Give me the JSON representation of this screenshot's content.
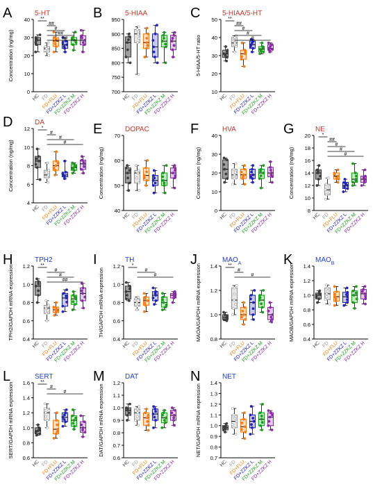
{
  "colors": {
    "HC": "#3d3d3d",
    "FD": "#9a9a9a",
    "FLU": "#f07d1a",
    "L": "#2222bb",
    "M": "#1e9a1e",
    "H": "#8a2aa8",
    "red": "#c0392b",
    "blue": "#1f3fbf"
  },
  "groups": [
    "HC",
    "FD",
    "FD+FLU",
    "FD+ZZKZ L",
    "FD+ZZKZ M",
    "FD+ZZKZ H"
  ],
  "chart_data": [
    {
      "type": "box",
      "letter": "A",
      "title": "5-HT",
      "title_color": "red",
      "ylabel": "Concentration (ng/mg)",
      "ylim": [
        0,
        40
      ],
      "ticks": [
        0,
        10,
        20,
        30,
        40
      ],
      "tick_labels": [
        "0",
        "10",
        "20",
        "30",
        "40"
      ],
      "boxes": [
        [
          22,
          26,
          28.5,
          30,
          31.5
        ],
        [
          20,
          22,
          23.8,
          25,
          27
        ],
        [
          22,
          25,
          28,
          30,
          33
        ],
        [
          22,
          24,
          26,
          28,
          30
        ],
        [
          23,
          26,
          28.5,
          30,
          33
        ],
        [
          22,
          26,
          28.5,
          31,
          34
        ]
      ],
      "sig": [
        {
          "a": 0,
          "b": 1,
          "text": "**",
          "level": 0
        },
        {
          "a": 1,
          "b": 2,
          "text": "##",
          "level": 1
        },
        {
          "a": 1,
          "b": 3,
          "text": "#",
          "level": 2
        },
        {
          "a": 1,
          "b": 4,
          "text": "##",
          "level": 3
        },
        {
          "a": 1,
          "b": 5,
          "text": "##",
          "level": 4
        }
      ]
    },
    {
      "type": "box",
      "letter": "B",
      "title": "5-HIAA",
      "title_color": "red",
      "ylabel": "",
      "ylim": [
        700,
        950
      ],
      "ticks": [
        700,
        750,
        800,
        850,
        900,
        950
      ],
      "tick_labels": [
        "700",
        "750",
        "800",
        "850",
        "900",
        "950"
      ],
      "boxes": [
        [
          800,
          820,
          870,
          890,
          900
        ],
        [
          760,
          870,
          900,
          915,
          925
        ],
        [
          820,
          850,
          870,
          900,
          920
        ],
        [
          800,
          820,
          855,
          900,
          930
        ],
        [
          800,
          855,
          875,
          895,
          905
        ],
        [
          820,
          845,
          875,
          895,
          905
        ]
      ],
      "sig": []
    },
    {
      "type": "box",
      "letter": "C",
      "title": "5-HIAA/5-HT",
      "title_color": "red",
      "ylabel": "5-HIAA/5-HT ratio",
      "ylim": [
        10,
        50
      ],
      "ticks": [
        10,
        20,
        30,
        40,
        50
      ],
      "tick_labels": [
        "10",
        "20",
        "30",
        "40",
        "50"
      ],
      "boxes": [
        [
          27,
          29,
          31,
          33,
          35
        ],
        [
          32,
          35,
          37,
          40,
          41
        ],
        [
          24,
          28,
          31,
          33,
          37
        ],
        [
          32,
          34,
          36,
          38,
          39
        ],
        [
          31,
          32,
          33.5,
          35,
          37
        ],
        [
          32,
          33,
          34,
          36,
          37
        ]
      ],
      "sig": [
        {
          "a": 0,
          "b": 1,
          "text": "**",
          "level": 0
        },
        {
          "a": 1,
          "b": 2,
          "text": "##",
          "level": 1
        },
        {
          "a": 1,
          "b": 3,
          "text": "#",
          "level": 2
        },
        {
          "a": 1,
          "b": 4,
          "text": "#",
          "level": 3
        },
        {
          "a": 1,
          "b": 5,
          "text": "#",
          "level": 4
        }
      ]
    },
    {
      "type": "box",
      "letter": "D",
      "title": "DA",
      "title_color": "red",
      "ylabel": "Concentration (ng/mg)",
      "ylim": [
        4,
        12
      ],
      "ticks": [
        4,
        6,
        8,
        10,
        12
      ],
      "tick_labels": [
        "4",
        "6",
        "8",
        "10",
        "12"
      ],
      "boxes": [
        [
          6.5,
          7.8,
          8.5,
          9.0,
          9.8
        ],
        [
          6.2,
          6.7,
          7.0,
          7.5,
          8.3
        ],
        [
          7.0,
          7.5,
          8.0,
          8.5,
          9.5
        ],
        [
          6.6,
          6.8,
          7.0,
          7.3,
          8.5
        ],
        [
          7.2,
          7.5,
          7.8,
          8.1,
          8.3
        ],
        [
          7.2,
          7.6,
          8.2,
          8.6,
          9.0
        ]
      ],
      "sig": [
        {
          "a": 0,
          "b": 1,
          "text": "*",
          "level": 0
        },
        {
          "a": 1,
          "b": 2,
          "text": "#",
          "level": 1
        },
        {
          "a": 1,
          "b": 4,
          "text": "#",
          "level": 2
        },
        {
          "a": 1,
          "b": 5,
          "text": "#",
          "level": 3
        }
      ]
    },
    {
      "type": "box",
      "letter": "E",
      "title": "DOPAC",
      "title_color": "red",
      "ylabel": "Concentration (ng/mg)",
      "ylim": [
        40,
        70
      ],
      "ticks": [
        40,
        50,
        60,
        70
      ],
      "tick_labels": [
        "40",
        "50",
        "60",
        "70"
      ],
      "boxes": [
        [
          48,
          51,
          55,
          57,
          58
        ],
        [
          48,
          51,
          55,
          56,
          58
        ],
        [
          50,
          52,
          54,
          57,
          60
        ],
        [
          47,
          50,
          52,
          54,
          56
        ],
        [
          47,
          50,
          52,
          55,
          58
        ],
        [
          49,
          53,
          55,
          57,
          58
        ]
      ],
      "sig": []
    },
    {
      "type": "box",
      "letter": "F",
      "title": "HVA",
      "title_color": "red",
      "ylabel": "Concentration (ng/mg)",
      "ylim": [
        0,
        40
      ],
      "ticks": [
        0,
        10,
        20,
        30,
        40
      ],
      "tick_labels": [
        "0",
        "10",
        "20",
        "30",
        "40"
      ],
      "boxes": [
        [
          15,
          17,
          22,
          27,
          28
        ],
        [
          14,
          17,
          19,
          22,
          25
        ],
        [
          14,
          17,
          19,
          22,
          24
        ],
        [
          15,
          17,
          19,
          22,
          24
        ],
        [
          12,
          17,
          20,
          22,
          24
        ],
        [
          15,
          18,
          20,
          23,
          26
        ]
      ],
      "sig": []
    },
    {
      "type": "box",
      "letter": "G",
      "title": "NE",
      "title_color": "red",
      "ylabel": "Concentration (ng/mg)",
      "ylim": [
        8,
        20
      ],
      "ticks": [
        8,
        10,
        12,
        14,
        16,
        18,
        20
      ],
      "tick_labels": [
        "8",
        "10",
        "12",
        "14",
        "16",
        "18",
        "20"
      ],
      "boxes": [
        [
          12,
          13,
          14,
          14.5,
          15.2
        ],
        [
          9.8,
          10.5,
          11.3,
          12.2,
          13.2
        ],
        [
          12.5,
          13,
          13.5,
          14,
          14.5
        ],
        [
          11,
          11.5,
          12,
          12.5,
          13
        ],
        [
          12,
          12.5,
          13,
          14,
          15.5
        ],
        [
          12,
          12.5,
          13,
          13.5,
          14.5
        ]
      ],
      "sig": [
        {
          "a": 0,
          "b": 1,
          "text": "*",
          "level": 0
        },
        {
          "a": 1,
          "b": 2,
          "text": "##",
          "level": 1
        },
        {
          "a": 1,
          "b": 3,
          "text": "#",
          "level": 2
        },
        {
          "a": 1,
          "b": 4,
          "text": "#",
          "level": 3
        },
        {
          "a": 1,
          "b": 5,
          "text": "#",
          "level": 4
        }
      ]
    },
    {
      "type": "box",
      "letter": "H",
      "title": "TPH2",
      "title_color": "blue",
      "ylabel": "TPH2/GAPDH mRNA expression",
      "ylim": [
        0.4,
        1.2
      ],
      "ticks": [
        0.4,
        0.6,
        0.8,
        1.0,
        1.2
      ],
      "tick_labels": [
        "0.4",
        "0.6",
        "0.8",
        "1.0",
        "1.2"
      ],
      "boxes": [
        [
          0.8,
          0.88,
          0.98,
          1.03,
          1.06
        ],
        [
          0.6,
          0.68,
          0.74,
          0.77,
          0.82
        ],
        [
          0.66,
          0.69,
          0.72,
          0.75,
          0.8
        ],
        [
          0.7,
          0.76,
          0.85,
          0.9,
          0.94
        ],
        [
          0.72,
          0.78,
          0.84,
          0.88,
          0.92
        ],
        [
          0.74,
          0.82,
          0.9,
          0.96,
          1.01
        ]
      ],
      "sig": [
        {
          "a": 0,
          "b": 1,
          "text": "**",
          "level": 0
        },
        {
          "a": 1,
          "b": 3,
          "text": "#",
          "level": 1
        },
        {
          "a": 1,
          "b": 4,
          "text": "#",
          "level": 2
        },
        {
          "a": 1,
          "b": 5,
          "text": "##",
          "level": 3
        }
      ]
    },
    {
      "type": "box",
      "letter": "I",
      "title": "TH",
      "title_color": "blue",
      "ylabel": "TH/GAPDH mRNA expression",
      "ylim": [
        0.4,
        1.2
      ],
      "ticks": [
        0.4,
        0.6,
        0.8,
        1.0,
        1.2
      ],
      "tick_labels": [
        "0.4",
        "0.6",
        "0.8",
        "1.0",
        "1.2"
      ],
      "boxes": [
        [
          0.82,
          0.84,
          0.92,
          0.98,
          1.02
        ],
        [
          0.72,
          0.76,
          0.8,
          0.84,
          0.86
        ],
        [
          0.7,
          0.77,
          0.82,
          0.86,
          0.9
        ],
        [
          0.78,
          0.82,
          0.88,
          0.92,
          0.96
        ],
        [
          0.72,
          0.75,
          0.8,
          0.86,
          0.9
        ],
        [
          0.8,
          0.85,
          0.88,
          0.9,
          0.92
        ]
      ],
      "sig": [
        {
          "a": 0,
          "b": 1,
          "text": "*",
          "level": 0
        },
        {
          "a": 1,
          "b": 3,
          "text": "#",
          "level": 1
        },
        {
          "a": 1,
          "b": 5,
          "text": "#",
          "level": 2
        }
      ]
    },
    {
      "type": "box",
      "letter": "J",
      "title": "MAO",
      "title_sub": "A",
      "title_color": "blue",
      "ylabel": "MAOA/GAPDH mRNA expression",
      "ylim": [
        0.8,
        1.4
      ],
      "ticks": [
        0.8,
        1.0,
        1.2,
        1.4
      ],
      "tick_labels": [
        "0.8",
        "1.0",
        "1.2",
        "1.4"
      ],
      "boxes": [
        [
          0.95,
          0.96,
          0.98,
          1.0,
          1.02
        ],
        [
          1.0,
          1.05,
          1.12,
          1.22,
          1.24
        ],
        [
          0.92,
          0.96,
          1.0,
          1.06,
          1.1
        ],
        [
          0.96,
          1.0,
          1.1,
          1.16,
          1.2
        ],
        [
          1.02,
          1.06,
          1.12,
          1.16,
          1.2
        ],
        [
          0.94,
          0.96,
          1.0,
          1.06,
          1.1
        ]
      ],
      "sig": [
        {
          "a": 0,
          "b": 1,
          "text": "**",
          "level": 0
        },
        {
          "a": 1,
          "b": 2,
          "text": "#",
          "level": 1
        },
        {
          "a": 1,
          "b": 5,
          "text": "#",
          "level": 2
        }
      ]
    },
    {
      "type": "box",
      "letter": "K",
      "title": "MAO",
      "title_sub": "B",
      "title_color": "blue",
      "ylabel": "MAOB/GAPDH mRNA expression",
      "ylim": [
        0.4,
        1.4
      ],
      "ticks": [
        0.4,
        0.6,
        0.8,
        1.0,
        1.2,
        1.4
      ],
      "tick_labels": [
        "0.4",
        "0.6",
        "0.8",
        "1.0",
        "1.2",
        "1.4"
      ],
      "boxes": [
        [
          0.9,
          0.95,
          1.0,
          1.03,
          1.06
        ],
        [
          0.88,
          0.94,
          1.02,
          1.1,
          1.14
        ],
        [
          0.86,
          0.92,
          0.98,
          1.05,
          1.12
        ],
        [
          0.86,
          0.9,
          0.98,
          1.04,
          1.1
        ],
        [
          0.82,
          0.9,
          1.0,
          1.06,
          1.12
        ],
        [
          0.88,
          0.95,
          1.02,
          1.08,
          1.12
        ]
      ],
      "sig": []
    },
    {
      "type": "box",
      "letter": "L",
      "title": "SERT",
      "title_color": "blue",
      "ylabel": "SERT/GAPDH mRNA expression",
      "ylim": [
        0.6,
        1.6
      ],
      "ticks": [
        0.6,
        0.8,
        1.0,
        1.2,
        1.4,
        1.6
      ],
      "tick_labels": [
        "0.6",
        "0.8",
        "1.0",
        "1.2",
        "1.4",
        "1.6"
      ],
      "boxes": [
        [
          0.9,
          0.92,
          0.96,
          1.0,
          1.04
        ],
        [
          1.0,
          1.1,
          1.2,
          1.26,
          1.32
        ],
        [
          0.86,
          0.92,
          0.98,
          1.1,
          1.2
        ],
        [
          1.02,
          1.08,
          1.14,
          1.2,
          1.24
        ],
        [
          0.98,
          1.02,
          1.1,
          1.16,
          1.24
        ],
        [
          0.88,
          0.94,
          1.0,
          1.08,
          1.16
        ]
      ],
      "sig": [
        {
          "a": 0,
          "b": 1,
          "text": "**",
          "level": 0
        },
        {
          "a": 1,
          "b": 2,
          "text": "#",
          "level": 1
        },
        {
          "a": 1,
          "b": 5,
          "text": "#",
          "level": 2
        }
      ]
    },
    {
      "type": "box",
      "letter": "M",
      "title": "DAT",
      "title_color": "blue",
      "ylabel": "DAT/GAPDH mRNA expression",
      "ylim": [
        0.6,
        1.2
      ],
      "ticks": [
        0.6,
        0.7,
        0.8,
        0.9,
        1.0,
        1.1,
        1.2
      ],
      "tick_labels": [
        "0.6",
        "0.7",
        "0.8",
        "0.9",
        "1.0",
        "1.1",
        "1.2"
      ],
      "boxes": [
        [
          0.9,
          0.94,
          0.98,
          1.0,
          1.03
        ],
        [
          0.86,
          0.9,
          0.96,
          0.99,
          1.01
        ],
        [
          0.82,
          0.86,
          0.92,
          0.96,
          0.99
        ],
        [
          0.84,
          0.9,
          0.95,
          0.99,
          1.01
        ],
        [
          0.84,
          0.88,
          0.92,
          0.96,
          0.98
        ],
        [
          0.86,
          0.9,
          0.94,
          0.98,
          1.0
        ]
      ],
      "sig": []
    },
    {
      "type": "box",
      "letter": "N",
      "title": "NET",
      "title_color": "blue",
      "ylabel": "NET/GAPDH mRNA expression",
      "ylim": [
        0.7,
        1.4
      ],
      "ticks": [
        0.7,
        0.8,
        0.9,
        1.0,
        1.1,
        1.2,
        1.3,
        1.4
      ],
      "tick_labels": [
        "0.7",
        "0.8",
        "0.9",
        "1.0",
        "1.1",
        "1.2",
        "1.3",
        "1.4"
      ],
      "boxes": [
        [
          0.94,
          0.96,
          0.98,
          1.0,
          1.02
        ],
        [
          0.92,
          0.98,
          1.04,
          1.1,
          1.16
        ],
        [
          0.88,
          0.94,
          0.99,
          1.06,
          1.12
        ],
        [
          0.92,
          0.98,
          1.04,
          1.1,
          1.18
        ],
        [
          0.96,
          1.0,
          1.06,
          1.12,
          1.2
        ],
        [
          0.96,
          1.0,
          1.08,
          1.12,
          1.14
        ]
      ],
      "sig": []
    }
  ]
}
